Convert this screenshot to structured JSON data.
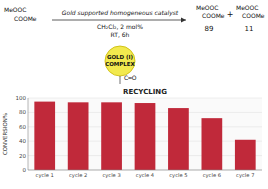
{
  "chart_data": {
    "type": "bar",
    "title": "RECYCLING",
    "ylabel": "CONVERSION%",
    "categories": [
      "cycle 1",
      "cycle 2",
      "cycle 3",
      "cycle 4",
      "cycle 5",
      "cycle 6",
      "cycle 7"
    ],
    "values": [
      95,
      94,
      94,
      93,
      86,
      72,
      42
    ],
    "color": "#c0293a",
    "ylim": [
      0,
      100
    ],
    "yticks": [
      0,
      20,
      40,
      60,
      80,
      100
    ],
    "grid": true,
    "annotations": [
      "GOLD (I)",
      "COMPLEX",
      "Gold supported homogeneous catalyst",
      "CH₂Cl₂, 2 mol%",
      "RT, 6h",
      "89",
      "11",
      "+",
      "MeOOC",
      "COOMe",
      "MeOOC",
      "COOMe",
      "MeOOC",
      "COOMe",
      "C═O"
    ]
  }
}
